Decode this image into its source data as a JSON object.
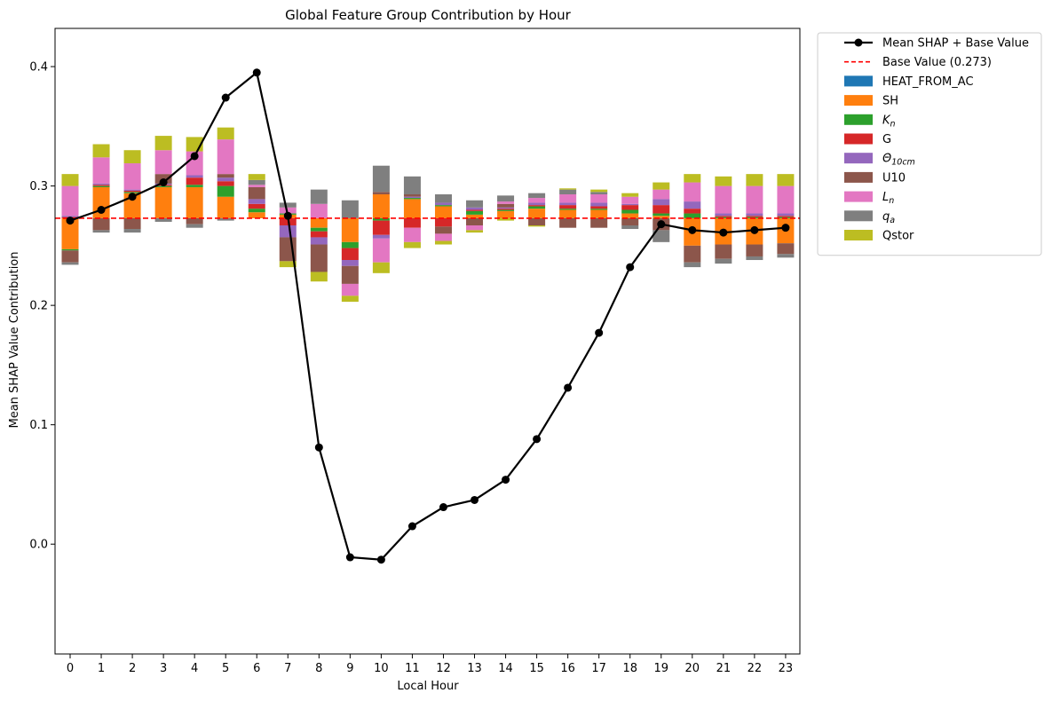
{
  "chart_data": {
    "type": "bar",
    "subtype": "stacked-bar-with-line",
    "title": "Global Feature Group Contribution by Hour",
    "xlabel": "Local Hour",
    "ylabel": "Mean SHAP Value Contribution",
    "categories": [
      "0",
      "1",
      "2",
      "3",
      "4",
      "5",
      "6",
      "7",
      "8",
      "9",
      "10",
      "11",
      "12",
      "13",
      "14",
      "15",
      "16",
      "17",
      "18",
      "19",
      "20",
      "21",
      "22",
      "23"
    ],
    "ylim": [
      -0.092,
      0.432
    ],
    "yticks": [
      0.0,
      0.1,
      0.2,
      0.3,
      0.4
    ],
    "ytick_labels": [
      "0.0",
      "0.1",
      "0.2",
      "0.3",
      "0.4"
    ],
    "grid": false,
    "legend_position": "outside-top-right",
    "base_value": 0.273,
    "base_line": {
      "name": "Base Value (0.273)",
      "color": "#ff0000",
      "style": "dashed"
    },
    "mean_line": {
      "name": "Mean SHAP + Base Value",
      "color": "#000000",
      "values": [
        0.271,
        0.28,
        0.291,
        0.303,
        0.325,
        0.374,
        0.395,
        0.275,
        0.081,
        -0.011,
        -0.013,
        0.015,
        0.031,
        0.037,
        0.054,
        0.088,
        0.131,
        0.177,
        0.232,
        0.268,
        0.263,
        0.261,
        0.263,
        0.265
      ]
    },
    "series": [
      {
        "name": "HEAT_FROM_AC",
        "label_main": "HEAT_FROM_AC",
        "label_sub": "",
        "color": "#1f77b4",
        "values": [
          0,
          0,
          0,
          0,
          0,
          0,
          0,
          0,
          0,
          0,
          0,
          0,
          0,
          0,
          0,
          0,
          0,
          0,
          0,
          0,
          0,
          0,
          0,
          0
        ]
      },
      {
        "name": "SH",
        "label_main": "SH",
        "label_sub": "",
        "color": "#ff7f0e",
        "values": [
          -0.026,
          0.026,
          0.021,
          0.026,
          0.026,
          0.018,
          0.005,
          0.003,
          -0.008,
          -0.02,
          0.02,
          0.016,
          0.01,
          0.003,
          0.006,
          0.008,
          0.007,
          0.007,
          0.004,
          0.002,
          -0.023,
          -0.022,
          -0.022,
          -0.021
        ]
      },
      {
        "name": "K_n",
        "label_main": "K",
        "label_sub": "n",
        "color": "#2ca02c",
        "values": [
          -0.001,
          0.001,
          0.001,
          0.001,
          0.002,
          0.009,
          0.003,
          0.001,
          -0.003,
          -0.005,
          -0.002,
          0.001,
          0.001,
          0.003,
          0.001,
          0.002,
          0.001,
          0.001,
          0.003,
          0.002,
          0.004,
          0.001,
          0.001,
          0.001
        ]
      },
      {
        "name": "G",
        "label_main": "G",
        "label_sub": "",
        "color": "#d62728",
        "values": [
          0.001,
          0.001,
          0.001,
          0.001,
          0.006,
          0.004,
          0.004,
          -0.006,
          -0.005,
          -0.01,
          -0.012,
          -0.008,
          -0.007,
          0.001,
          0.001,
          0.001,
          0.003,
          0.002,
          0.004,
          0.007,
          0.004,
          0.001,
          0.001,
          0.001
        ]
      },
      {
        "name": "Theta_10cm",
        "label_main": "Θ",
        "label_sub": "10cm",
        "color": "#9467bd",
        "values": [
          0.001,
          0.001,
          0.001,
          0.001,
          0.002,
          0.003,
          0.004,
          -0.01,
          -0.006,
          -0.005,
          -0.003,
          0.001,
          0.002,
          0.002,
          0.001,
          0.002,
          0.002,
          0.003,
          0.001,
          0.005,
          0.006,
          0.002,
          0.002,
          0.002
        ]
      },
      {
        "name": "U10",
        "label_main": "U10",
        "label_sub": "",
        "color": "#8c564b",
        "values": [
          -0.01,
          -0.01,
          -0.009,
          0.008,
          -0.005,
          0.003,
          0.01,
          -0.02,
          -0.023,
          -0.015,
          0.002,
          0.002,
          -0.006,
          -0.006,
          0.003,
          -0.006,
          -0.008,
          -0.008,
          -0.006,
          -0.01,
          -0.014,
          -0.012,
          -0.01,
          -0.009
        ]
      },
      {
        "name": "L_n",
        "label_main": "L",
        "label_sub": "n",
        "color": "#e377c2",
        "values": [
          0.025,
          0.022,
          0.022,
          0.02,
          0.02,
          0.029,
          0.002,
          0.005,
          0.012,
          -0.01,
          -0.02,
          -0.012,
          -0.006,
          -0.004,
          0.002,
          0.004,
          0.007,
          0.007,
          0.006,
          0.008,
          0.016,
          0.023,
          0.023,
          0.023
        ]
      },
      {
        "name": "q_a",
        "label_main": "q",
        "label_sub": "a",
        "color": "#7f7f7f",
        "values": [
          -0.002,
          -0.002,
          -0.003,
          -0.003,
          -0.003,
          -0.002,
          0.004,
          0.004,
          0.012,
          0.015,
          0.022,
          0.015,
          0.007,
          0.006,
          0.005,
          0.004,
          0.004,
          0.002,
          -0.003,
          -0.01,
          -0.004,
          -0.004,
          -0.003,
          -0.003
        ]
      },
      {
        "name": "Qstor",
        "label_main": "Qstor",
        "label_sub": "",
        "color": "#bcbd22",
        "values": [
          0.01,
          0.011,
          0.011,
          0.012,
          0.012,
          0.01,
          0.005,
          -0.005,
          -0.008,
          -0.005,
          -0.009,
          -0.005,
          -0.003,
          -0.002,
          -0.002,
          -0.001,
          0.001,
          0.002,
          0.003,
          0.006,
          0.007,
          0.008,
          0.01,
          0.01
        ]
      }
    ]
  }
}
